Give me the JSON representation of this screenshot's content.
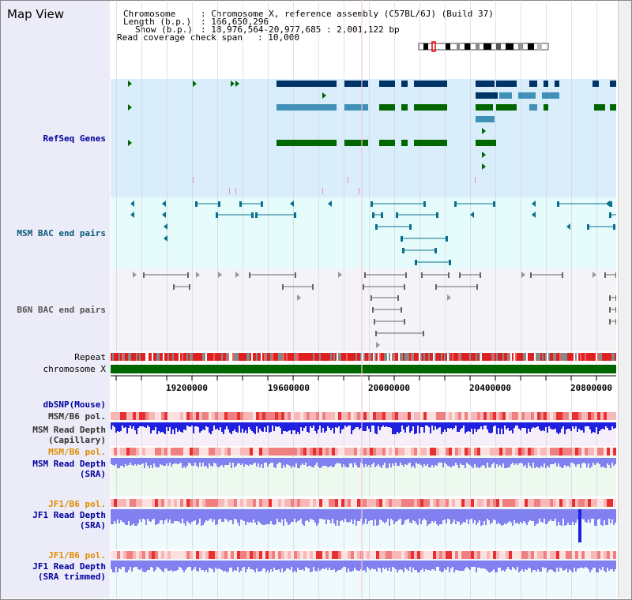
{
  "app": {
    "title": "Map View"
  },
  "header": {
    "line1_label": "Chromosome",
    "line1_value": ": Chromosome X, reference assembly (C57BL/6J) (Build 37)",
    "line2_label": "Length (b.p.)",
    "line2_value": ": 166,650,296",
    "line3_label": "Show (b.p.)",
    "line3_value": ": 18,976,564-20,977,685 : 2,001,122 bp",
    "line4_label": "Read coverage check span",
    "line4_value": ": 10,000"
  },
  "tracks": {
    "refseq": "RefSeq Genes",
    "msm_bac": "MSM BAC end pairs",
    "b6n_bac": "B6N BAC end pairs",
    "repeat": "Repeat",
    "chromosome": "chromosome X",
    "dbsnp": "dbSNP(Mouse)",
    "msm_b6_pol_1": "MSM/B6 pol.",
    "msm_depth_cap_1": "MSM Read Depth",
    "msm_depth_cap_2": "(Capillary)",
    "msm_b6_pol_2": "MSM/B6 pol.",
    "msm_depth_sra_1": "MSM Read Depth",
    "msm_depth_sra_2": "(SRA)",
    "jf1_b6_pol_1": "JF1/B6 pol.",
    "jf1_depth_sra_1": "JF1 Read Depth",
    "jf1_depth_sra_2": "(SRA)",
    "jf1_b6_pol_2": "JF1/B6 pol.",
    "jf1_depth_trim_1": "JF1 Read Depth",
    "jf1_depth_trim_2": "(SRA trimmed)"
  },
  "axis": {
    "ticks": [
      "19200000",
      "19600000",
      "20000000",
      "20400000",
      "20800000"
    ]
  },
  "colors": {
    "refseq_bg": "#d9eefa",
    "msm_bg": "#e6fbfb",
    "b6n_bg": "#f4f4f8",
    "refseq_dark": "#003366",
    "refseq_mid": "#4090b8",
    "refseq_green": "#006600",
    "msm_pair": "#0a6f8f",
    "b6n_pair": "#666666",
    "chromosome": "#006600",
    "depth_dark": "#2020e0",
    "depth_light": "#8080f0"
  }
}
